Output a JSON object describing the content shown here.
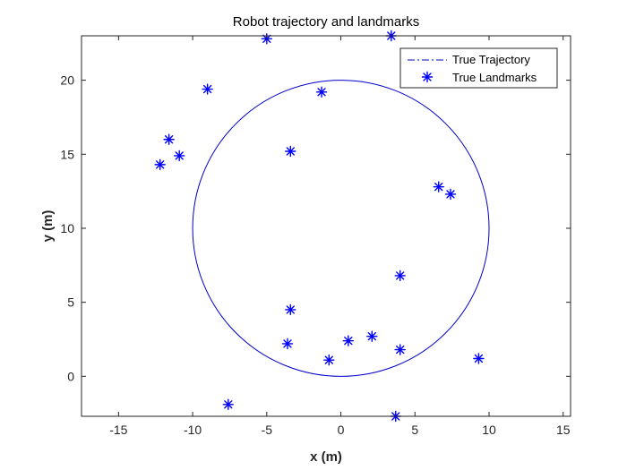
{
  "chart_data": {
    "type": "scatter",
    "title": "Robot trajectory and landmarks",
    "xlabel": "x (m)",
    "ylabel": "y (m)",
    "xlim": [
      -17.5,
      15.5
    ],
    "ylim": [
      -2.7,
      23
    ],
    "xticks": [
      -15,
      -10,
      -5,
      0,
      5,
      10,
      15
    ],
    "yticks": [
      0,
      5,
      10,
      15,
      20
    ],
    "grid": false,
    "legend_position": "top-right",
    "series": [
      {
        "name": "True Trajectory",
        "kind": "line",
        "shape": "circle",
        "center": [
          0,
          10
        ],
        "radius": 10,
        "color": "#0000cc"
      },
      {
        "name": "True Landmarks",
        "kind": "scatter",
        "marker": "asterisk",
        "color": "#0000ff",
        "points": [
          [
            -5.0,
            22.8
          ],
          [
            3.4,
            23.0
          ],
          [
            -9.0,
            19.4
          ],
          [
            -1.3,
            19.2
          ],
          [
            -11.6,
            16.0
          ],
          [
            -12.2,
            14.3
          ],
          [
            -10.9,
            14.9
          ],
          [
            -3.4,
            15.2
          ],
          [
            6.6,
            12.8
          ],
          [
            7.4,
            12.3
          ],
          [
            4.0,
            6.8
          ],
          [
            -3.4,
            4.5
          ],
          [
            -3.6,
            2.2
          ],
          [
            0.5,
            2.4
          ],
          [
            2.1,
            2.7
          ],
          [
            4.0,
            1.8
          ],
          [
            -0.8,
            1.1
          ],
          [
            9.3,
            1.2
          ],
          [
            -7.6,
            -1.9
          ],
          [
            3.7,
            -2.7
          ]
        ]
      }
    ]
  }
}
